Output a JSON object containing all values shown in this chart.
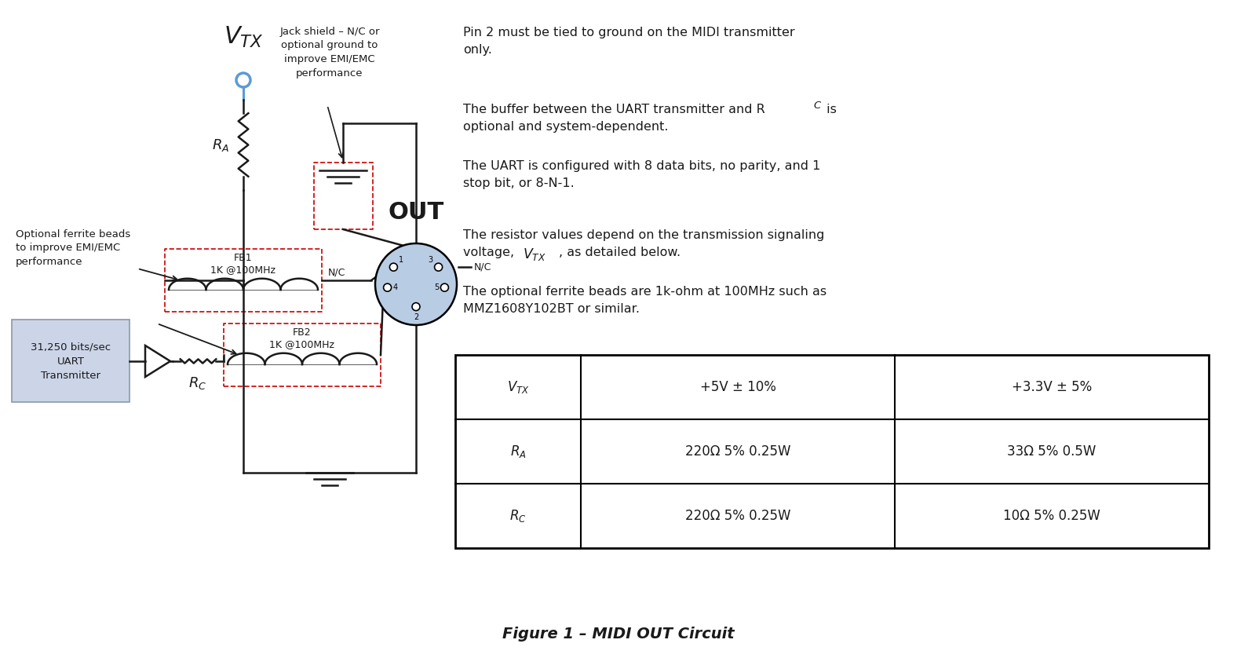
{
  "bg_color": "#ffffff",
  "schematic_color": "#1a1a1a",
  "blue_color": "#5b9bd5",
  "red_dashed_color": "#cc0000",
  "light_blue_box": "#ccd5e8",
  "title": "Figure 1 – MIDI OUT Circuit",
  "vtx_label": "$V_{TX}$",
  "ra_label": "$R_A$",
  "rc_label": "$R_C$",
  "out_label": "OUT",
  "fb1_label": "FB1\n1K @100MHz",
  "fb2_label": "FB2\n1K @100MHz",
  "uart_label": "31,250 bits/sec\nUART\nTransmitter",
  "jack_annotation": "Jack shield – N/C or\noptional ground to\nimprove EMI/EMC\nperformance",
  "ferrite_annotation": "Optional ferrite beads\nto improve EMI/EMC\nperformance",
  "note1": "Pin 2 must be tied to ground on the MIDI transmitter\nonly.",
  "note2_a": "The buffer between the UART transmitter and R",
  "note2_c": "C",
  "note2_b": " is",
  "note2_c2": "optional and system-dependent.",
  "note3": "The UART is configured with 8 data bits, no parity, and 1\nstop bit, or 8-N-1.",
  "note4_a": "The resistor values depend on the transmission signaling",
  "note4_b": "voltage, ",
  "note4_vtx": "$V_{TX}$",
  "note4_c": ", as detailed below.",
  "note5": "The optional ferrite beads are 1k-ohm at 100MHz such as\nMMZ1608Y102BT or similar.",
  "tbl_header": [
    "$V_{TX}$",
    "+5V ± 10%",
    "+3.3V ± 5%"
  ],
  "tbl_row1": [
    "$R_A$",
    "220Ω 5% 0.25W",
    "33Ω 5% 0.5W"
  ],
  "tbl_row2": [
    "$R_C$",
    "220Ω 5% 0.25W",
    "10Ω 5% 0.25W"
  ]
}
